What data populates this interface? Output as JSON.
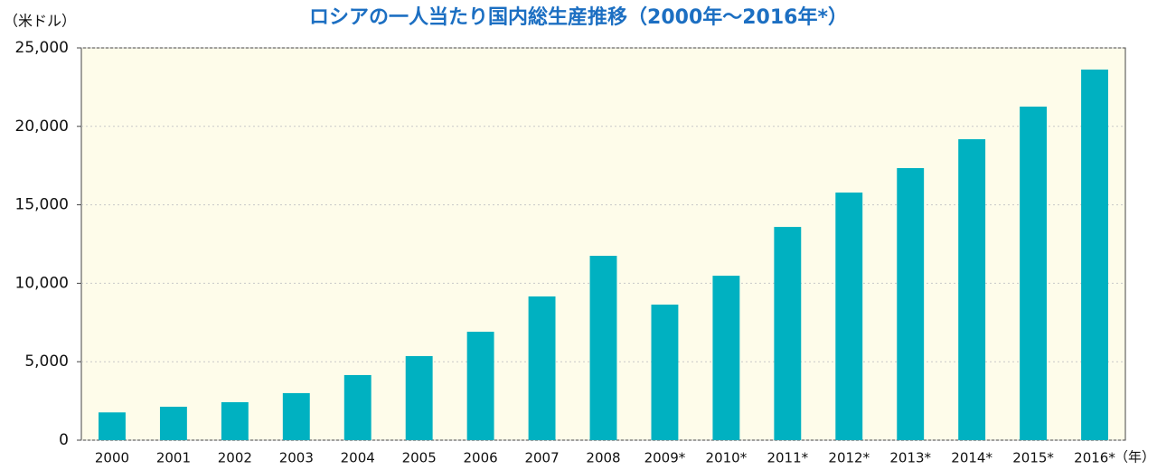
{
  "chart_data": {
    "type": "bar",
    "title": "ロシアの一人当たり国内総生産推移（2000年〜2016年*）",
    "y_axis_label": "（米ドル）",
    "x_axis_label": "（年）",
    "categories": [
      "2000",
      "2001",
      "2002",
      "2003",
      "2004",
      "2005",
      "2006",
      "2007",
      "2008",
      "2009*",
      "2010*",
      "2011*",
      "2012*",
      "2013*",
      "2014*",
      "2015*",
      "2016*"
    ],
    "values": [
      1770,
      2130,
      2420,
      3000,
      4150,
      5360,
      6910,
      9160,
      11750,
      8640,
      10480,
      13590,
      15780,
      17340,
      19180,
      21260,
      23620
    ],
    "color": "#00b1c1",
    "ylim": [
      0,
      25000
    ],
    "yticks": [
      0,
      {
        "value": 5000,
        "label": "5,000"
      },
      {
        "value": 10000,
        "label": "10,000"
      },
      {
        "value": 15000,
        "label": "15,000"
      },
      {
        "value": 20000,
        "label": "20,000"
      },
      {
        "value": 25000,
        "label": "25,000"
      }
    ],
    "grid": true
  }
}
